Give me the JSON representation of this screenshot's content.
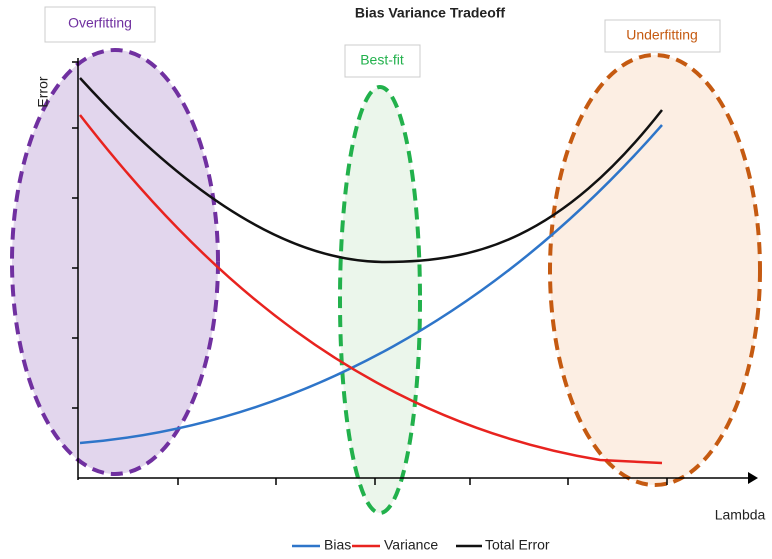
{
  "title": "Bias Variance Tradeoff",
  "annotations": {
    "overfitting": "Overfitting",
    "best_fit": "Best-fit",
    "underfitting": "Underfitting"
  },
  "axes": {
    "y_label": "Error",
    "x_label": "Lambda"
  },
  "legend": [
    "Bias",
    "Variance",
    "Total Error"
  ]
}
